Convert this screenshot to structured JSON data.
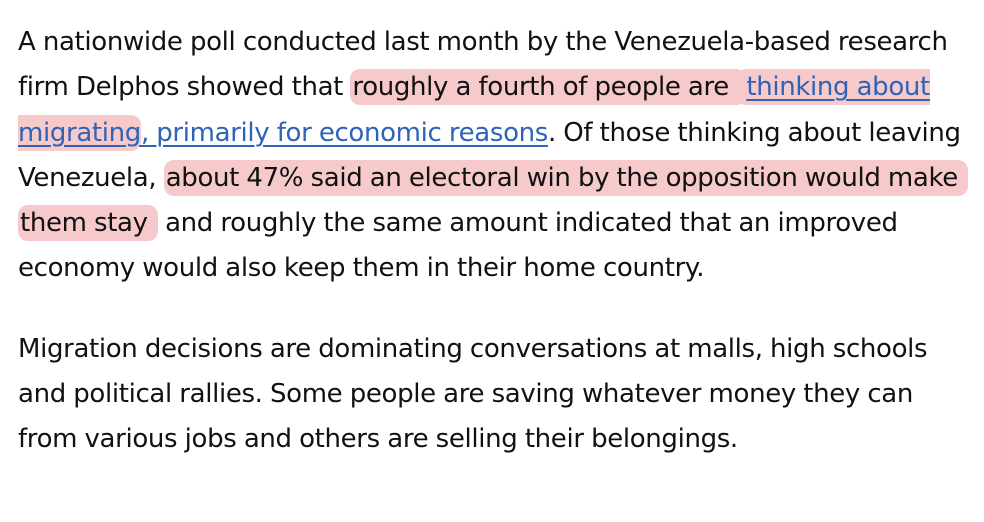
{
  "article": {
    "paragraph_1": {
      "t1": "A nationwide poll conducted last month by the Venezuela-based research firm Delphos showed that ",
      "h1a": "roughly a fourth of people are ",
      "link_a": "thinking about migrating",
      "link_b": ", primarily for economic reasons",
      "t2": ". Of those thinking about leaving Venezuela, ",
      "h2": "about 47% said an electoral win by the opposition would make them stay",
      "t3": " and roughly the same amount indicated that an improved economy would also keep them in their home country."
    },
    "paragraph_2": "Migration decisions are dominating conversations at malls, high schools and political rallies. Some people are saving whatever money they can from various jobs and others are selling their belongings."
  },
  "colors": {
    "highlight": "#f6c9cb",
    "link": "#2f63b8",
    "text": "#111111"
  }
}
